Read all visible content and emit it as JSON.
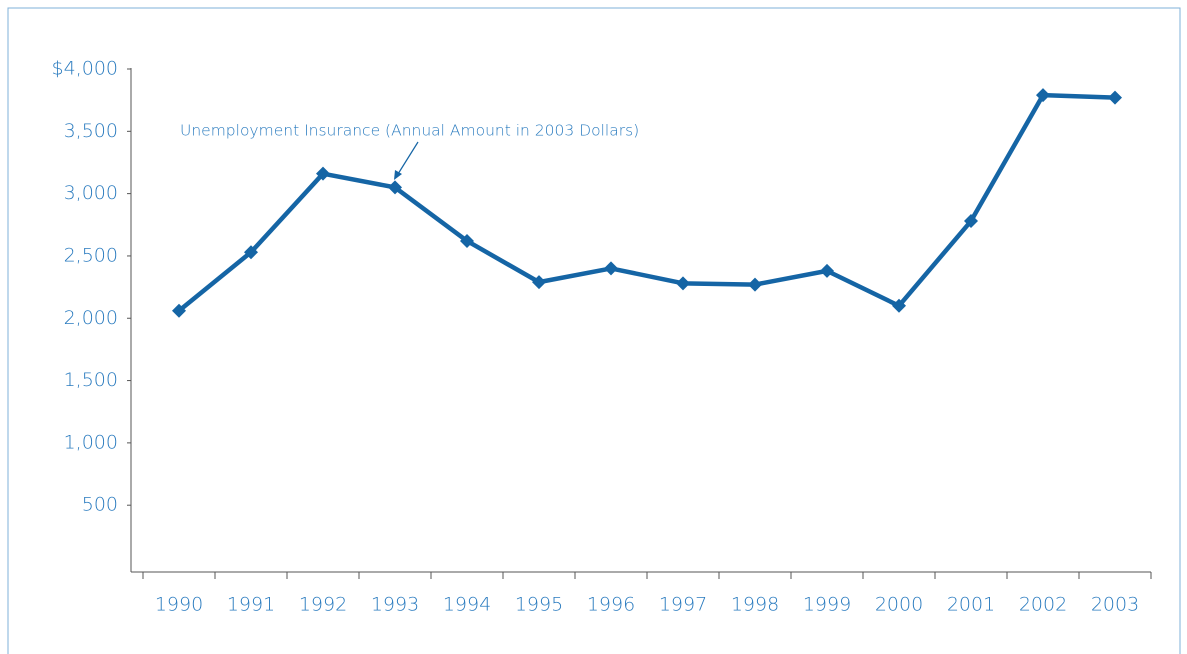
{
  "chart_data": {
    "type": "line",
    "annotation": "Unemployment Insurance (Annual Amount in 2003 Dollars)",
    "categories": [
      "1990",
      "1991",
      "1992",
      "1993",
      "1994",
      "1995",
      "1996",
      "1997",
      "1998",
      "1999",
      "2000",
      "2001",
      "2002",
      "2003"
    ],
    "values": [
      2060,
      2530,
      3160,
      3050,
      2620,
      2290,
      2400,
      2280,
      2270,
      2380,
      2100,
      2780,
      3790,
      3770
    ],
    "color": "#1565a5",
    "ylim": [
      0,
      4000
    ],
    "yticks": [
      500,
      {
        "value": 1000,
        "label": "1,000"
      },
      {
        "value": 1500,
        "label": "1,500"
      },
      {
        "value": 2000,
        "label": "2,000"
      },
      {
        "value": 2500,
        "label": "2,500"
      },
      {
        "value": 3000,
        "label": "3,000"
      },
      {
        "value": 3500,
        "label": "3,500"
      },
      {
        "value": 4000,
        "label": "$4,000"
      }
    ],
    "grid": false
  }
}
